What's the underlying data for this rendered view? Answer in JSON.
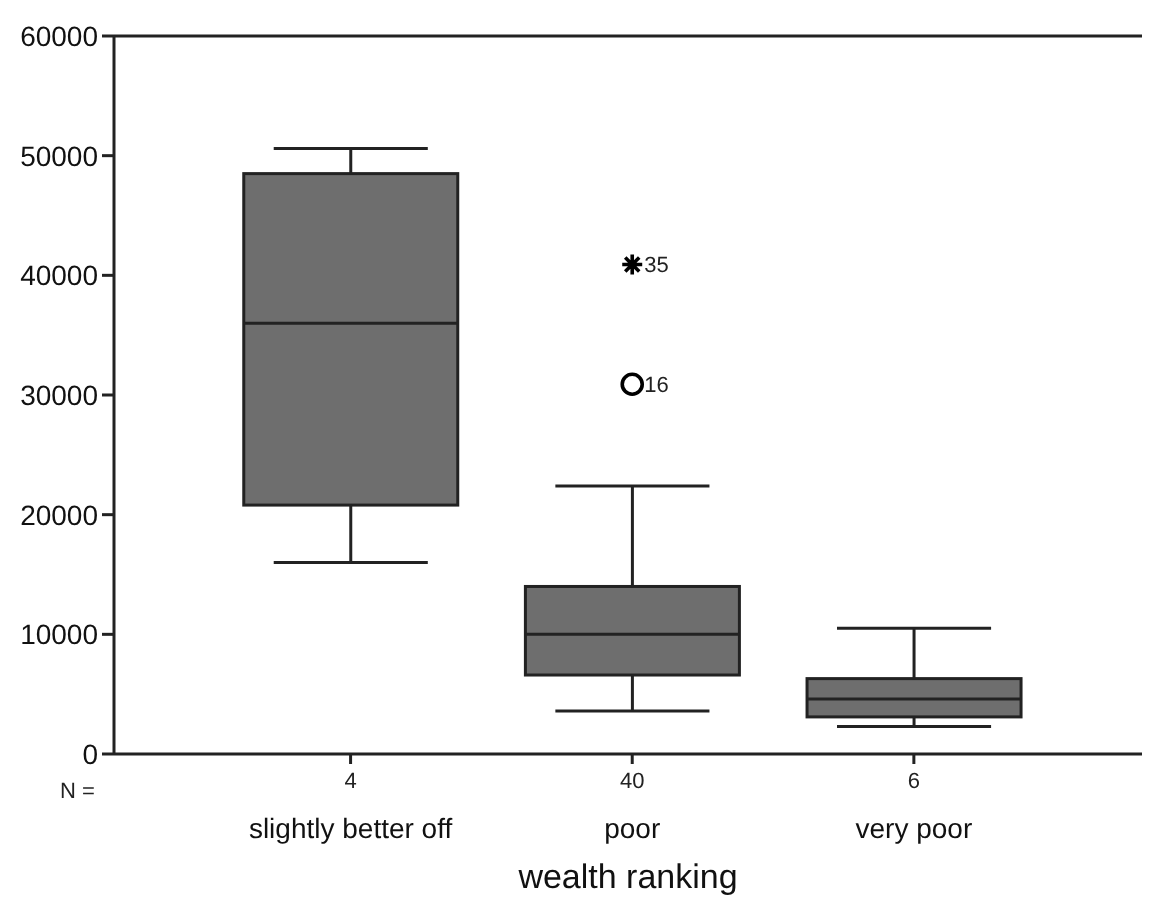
{
  "chart_data": {
    "type": "box",
    "xlabel": "wealth ranking",
    "categories": [
      "slightly better off",
      "poor",
      "very poor"
    ],
    "color": "#6e6e6e",
    "boxes": [
      {
        "low": 16000,
        "q1": 20800,
        "median": 36000,
        "q3": 48500,
        "high": 50600
      },
      {
        "low": 3600,
        "q1": 6600,
        "median": 10000,
        "q3": 14000,
        "high": 22400,
        "outliers": [
          40900,
          30900
        ]
      },
      {
        "low": 2300,
        "q1": 3100,
        "median": 4600,
        "q3": 6300,
        "high": 10500
      }
    ],
    "ylim": [
      0,
      60000
    ],
    "yticks": [
      0,
      10000,
      20000,
      30000,
      40000,
      50000,
      60000
    ],
    "grid": false,
    "legend": false,
    "annotations": [
      "N =",
      "4",
      "40",
      "6",
      "35",
      "16"
    ]
  }
}
